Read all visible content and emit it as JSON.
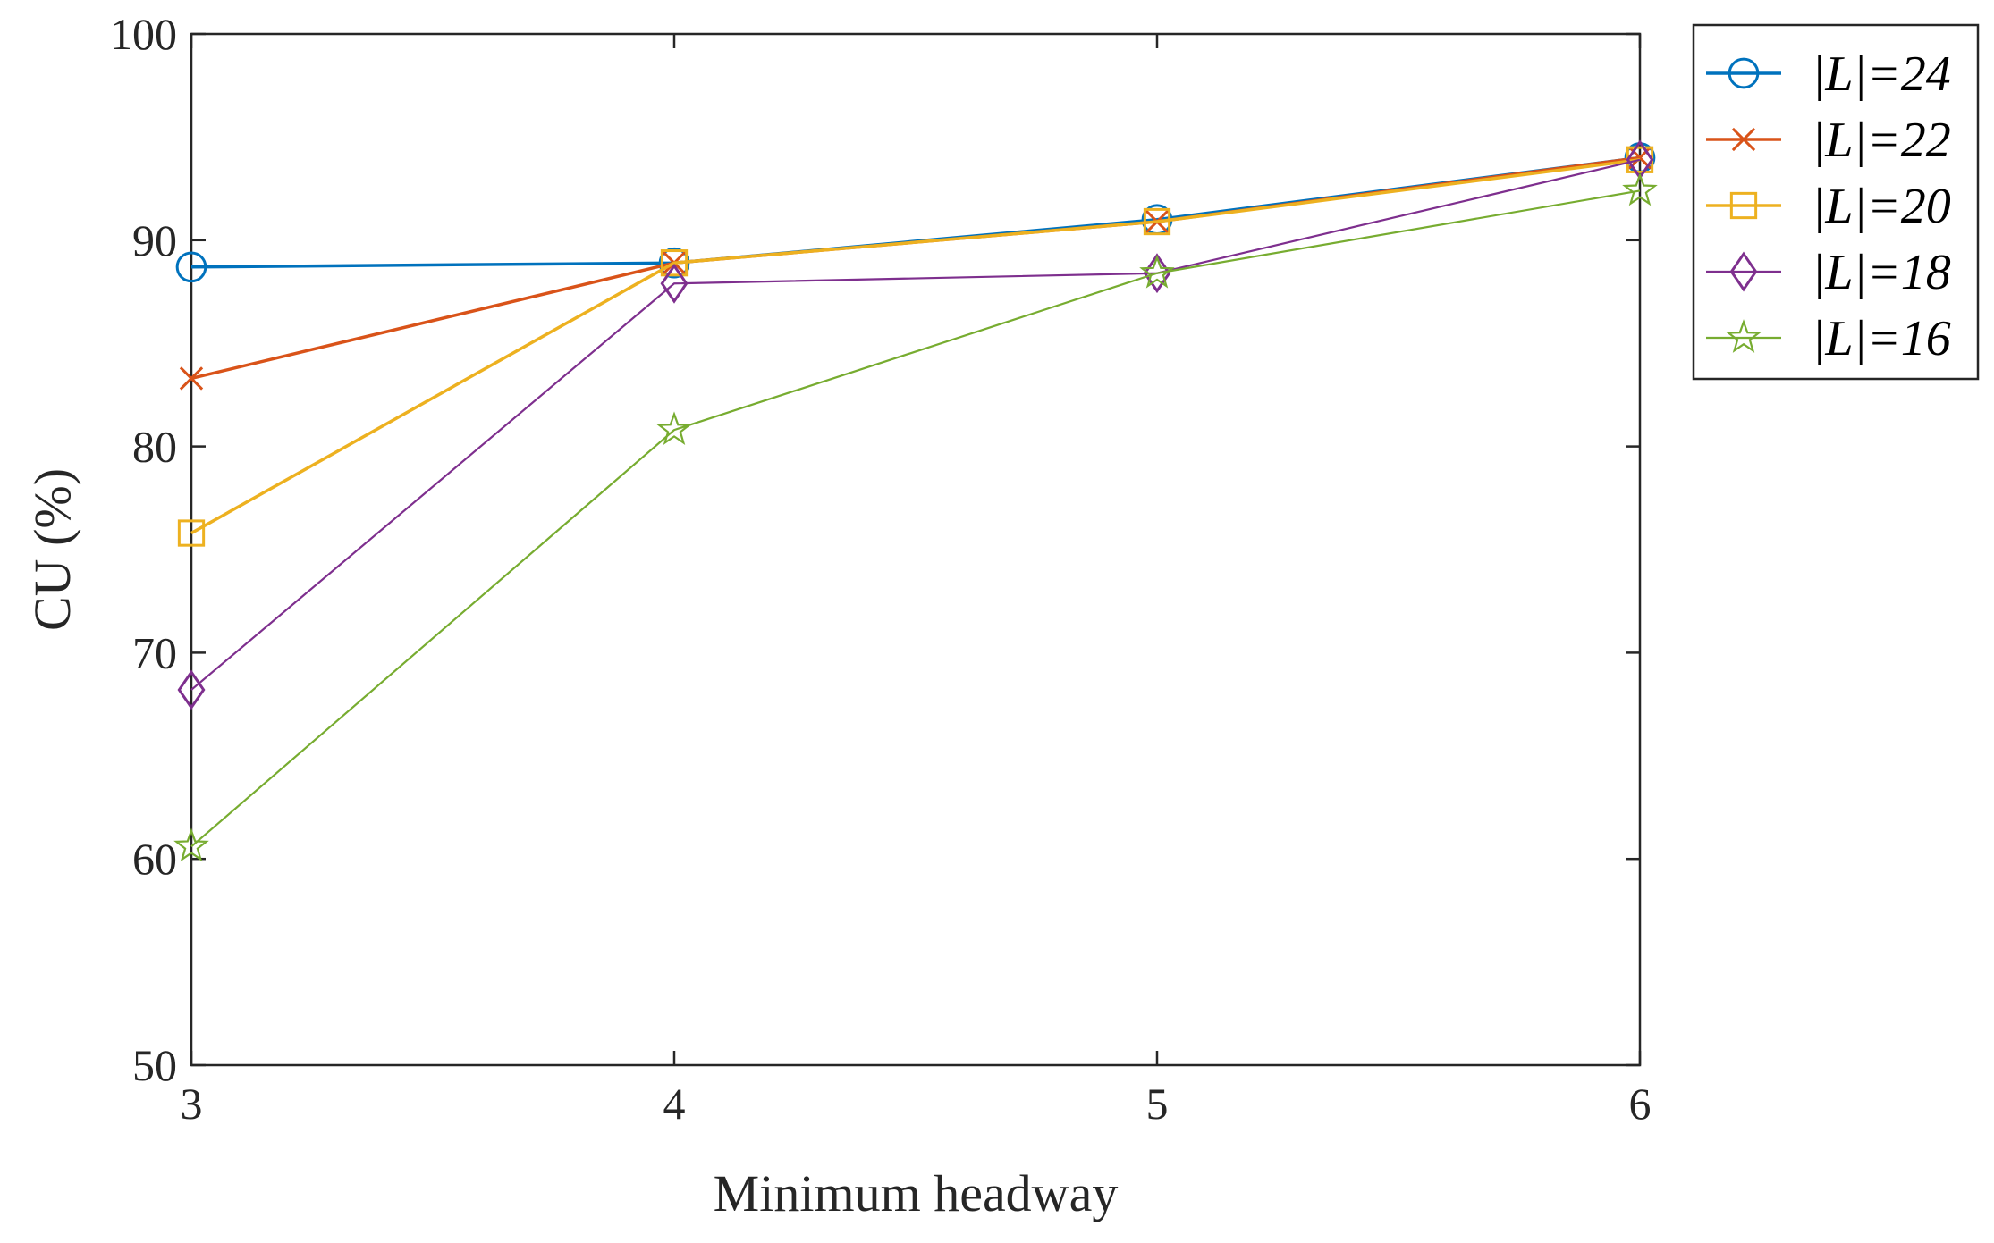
{
  "chart_data": {
    "type": "line",
    "title": "",
    "xlabel": "Minimum headway",
    "ylabel": "CU (%)",
    "x": [
      3,
      4,
      5,
      6
    ],
    "xticks": [
      "3",
      "4",
      "5",
      "6"
    ],
    "yticks": [
      "50",
      "60",
      "70",
      "80",
      "90",
      "100"
    ],
    "xlim": [
      3,
      6
    ],
    "ylim": [
      50,
      100
    ],
    "grid": false,
    "legend_position": "outside-top-right",
    "series": [
      {
        "name": "|L|=24",
        "color": "#0072BD",
        "marker": "circle",
        "values": [
          88.7,
          88.9,
          91.0,
          94.0
        ]
      },
      {
        "name": "|L|=22",
        "color": "#D95319",
        "marker": "x",
        "values": [
          83.3,
          88.9,
          90.9,
          94.0
        ]
      },
      {
        "name": "|L|=20",
        "color": "#EDB120",
        "marker": "square",
        "values": [
          75.8,
          88.9,
          90.9,
          93.9
        ]
      },
      {
        "name": "|L|=18",
        "color": "#7E2F8E",
        "marker": "diamond",
        "values": [
          68.2,
          87.9,
          88.4,
          93.9
        ]
      },
      {
        "name": "|L|=16",
        "color": "#77AC30",
        "marker": "star",
        "values": [
          60.6,
          80.8,
          88.4,
          92.4
        ]
      }
    ]
  }
}
